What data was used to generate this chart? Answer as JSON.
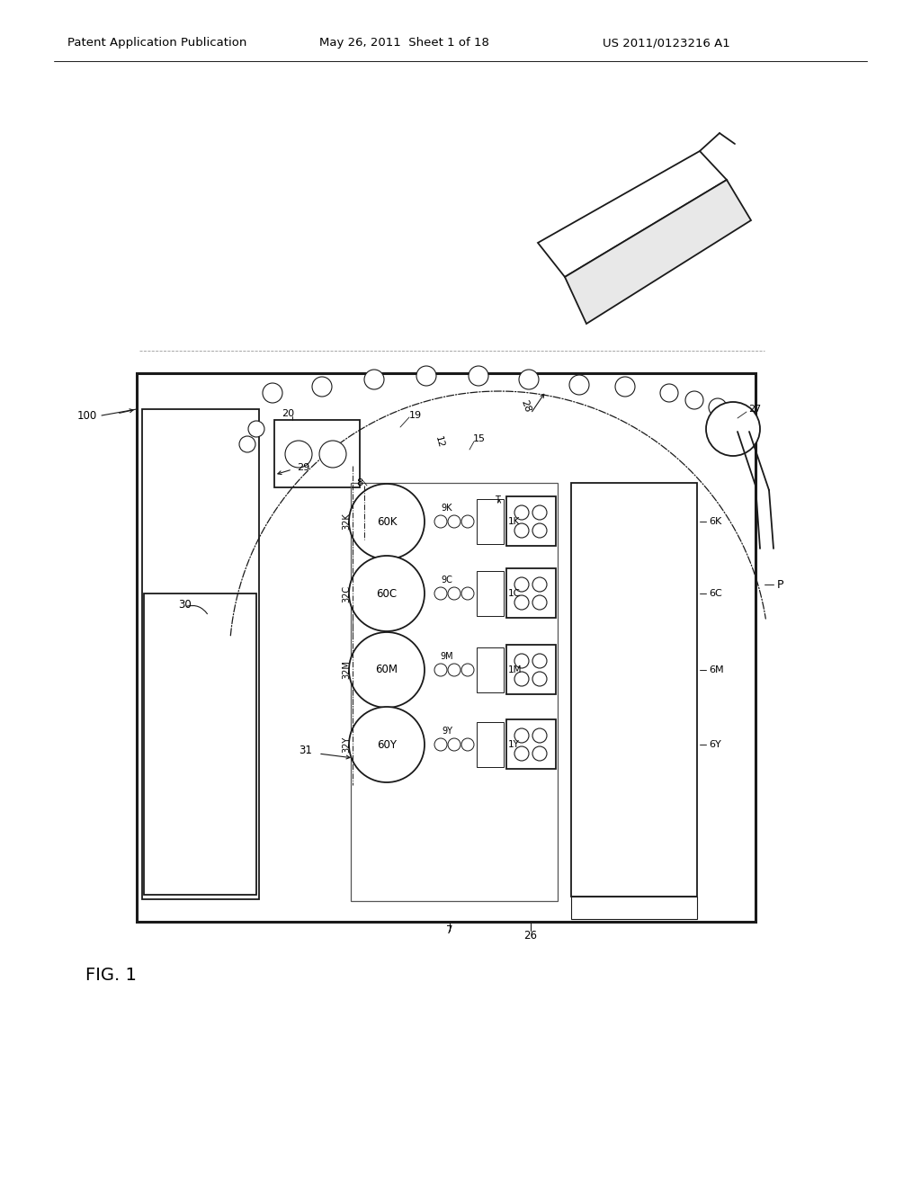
{
  "header_left": "Patent Application Publication",
  "header_mid": "May 26, 2011  Sheet 1 of 18",
  "header_right": "US 2011/0123216 A1",
  "fig_label": "FIG. 1",
  "bg_color": "#ffffff",
  "line_color": "#1a1a1a",
  "header_fontsize": 9.5,
  "fig_label_fontsize": 14,
  "body_label_fontsize": 8
}
